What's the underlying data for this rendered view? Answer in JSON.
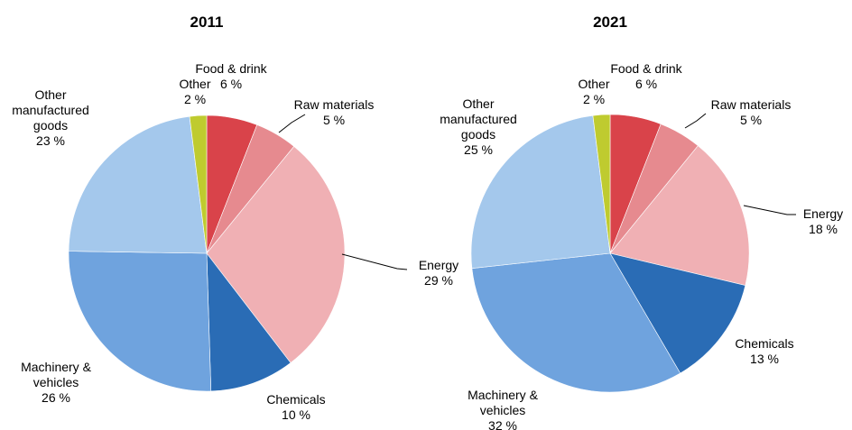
{
  "chart_data": [
    {
      "type": "pie",
      "title": "2011",
      "slices": [
        {
          "name": "Food & drink",
          "label_lines": [
            "Food & drink",
            "6 %"
          ],
          "value": 6,
          "color": "#d9434a"
        },
        {
          "name": "Raw materials",
          "label_lines": [
            "Raw materials",
            "5 %"
          ],
          "value": 5,
          "color": "#e68a8f"
        },
        {
          "name": "Energy",
          "label_lines": [
            "Energy",
            "29 %"
          ],
          "value": 29,
          "color": "#f0b0b4"
        },
        {
          "name": "Chemicals",
          "label_lines": [
            "Chemicals",
            "10 %"
          ],
          "value": 10,
          "color": "#2a6cb5"
        },
        {
          "name": "Machinery & vehicles",
          "label_lines": [
            "Machinery &",
            "vehicles",
            "26 %"
          ],
          "value": 26,
          "color": "#6fa3de"
        },
        {
          "name": "Other manufactured goods",
          "label_lines": [
            "Other",
            "manufactured",
            "goods",
            "23 %"
          ],
          "value": 23,
          "color": "#a4c8ec"
        },
        {
          "name": "Other",
          "label_lines": [
            "Other",
            "2 %"
          ],
          "value": 2,
          "color": "#bfcb2f"
        }
      ]
    },
    {
      "type": "pie",
      "title": "2021",
      "slices": [
        {
          "name": "Food & drink",
          "label_lines": [
            "Food & drink",
            "6 %"
          ],
          "value": 6,
          "color": "#d9434a"
        },
        {
          "name": "Raw materials",
          "label_lines": [
            "Raw materials",
            "5 %"
          ],
          "value": 5,
          "color": "#e68a8f"
        },
        {
          "name": "Energy",
          "label_lines": [
            "Energy",
            "18 %"
          ],
          "value": 18,
          "color": "#f0b0b4"
        },
        {
          "name": "Chemicals",
          "label_lines": [
            "Chemicals",
            "13 %"
          ],
          "value": 13,
          "color": "#2a6cb5"
        },
        {
          "name": "Machinery & vehicles",
          "label_lines": [
            "Machinery &",
            "vehicles",
            "32 %"
          ],
          "value": 32,
          "color": "#6fa3de"
        },
        {
          "name": "Other manufactured goods",
          "label_lines": [
            "Other",
            "manufactured",
            "goods",
            "25 %"
          ],
          "value": 25,
          "color": "#a4c8ec"
        },
        {
          "name": "Other",
          "label_lines": [
            "Other",
            "2 %"
          ],
          "value": 2,
          "color": "#bfcb2f"
        }
      ]
    }
  ]
}
